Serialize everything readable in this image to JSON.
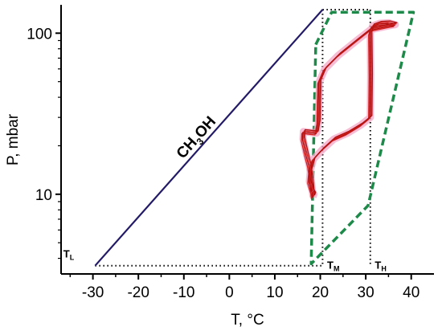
{
  "chart_data": {
    "type": "line",
    "xlabel": "T, °C",
    "ylabel": "P, mbar",
    "yscale": "log",
    "xlim": [
      -37,
      45
    ],
    "ylim": [
      3.2,
      150
    ],
    "x_ticks": [
      -30,
      -20,
      -10,
      0,
      10,
      20,
      30,
      40
    ],
    "y_ticks": [
      10,
      100
    ],
    "colors": {
      "vapor_line": "#221a66",
      "measured": "#d42020",
      "measured_glow": "#f4a6c4",
      "envelope": "#1e8a4a",
      "guide": "#000000"
    },
    "series": [
      {
        "label_main": "CH",
        "label_sub": "3",
        "label_end": "OH",
        "x": [
          -29.5,
          20.5
        ],
        "y": [
          3.6,
          140
        ]
      },
      {
        "x": [
          18.4,
          18.0,
          17.6,
          17.0,
          16.2,
          16.3,
          19.2,
          19.6,
          19.8,
          21.0,
          24.0,
          28.0,
          31.0,
          33.0,
          35.0,
          36.5,
          35.0,
          33.0,
          31.5,
          31.0,
          31.1,
          31.0,
          29.0,
          26.0,
          23.0,
          20.5,
          18.5,
          17.8,
          17.6,
          18.2,
          18.6,
          18.4
        ],
        "y": [
          9.6,
          12.5,
          15.0,
          17.5,
          22.0,
          24.5,
          24.0,
          28.0,
          50.0,
          60.0,
          73.0,
          90.0,
          105.0,
          108.0,
          111.0,
          113.0,
          116.0,
          115.0,
          111.0,
          100.0,
          55.0,
          30.0,
          27.0,
          24.0,
          22.0,
          19.0,
          16.5,
          14.0,
          12.0,
          10.5,
          10.0,
          9.6
        ]
      }
    ],
    "envelope": {
      "x": [
        19.0,
        22.5,
        40.5,
        30.5,
        18.0,
        19.0
      ],
      "y": [
        85,
        135,
        135,
        8.5,
        3.7,
        85
      ]
    },
    "guides": [
      {
        "x": [
          20.5,
          31.0
        ],
        "y": [
          140,
          140
        ]
      },
      {
        "x": [
          20.5,
          20.5
        ],
        "y": [
          140,
          3.6
        ]
      },
      {
        "x": [
          31.0,
          31.0
        ],
        "y": [
          140,
          3.6
        ]
      },
      {
        "x": [
          -29.5,
          20.5
        ],
        "y": [
          3.6,
          3.6
        ]
      }
    ],
    "markers": [
      {
        "main": "T",
        "sub": "L",
        "x": -36.5,
        "y": 4.05
      },
      {
        "main": "T",
        "sub": "M",
        "x": 21.5,
        "y": 3.45
      },
      {
        "main": "T",
        "sub": "H",
        "x": 32.0,
        "y": 3.45
      }
    ]
  }
}
